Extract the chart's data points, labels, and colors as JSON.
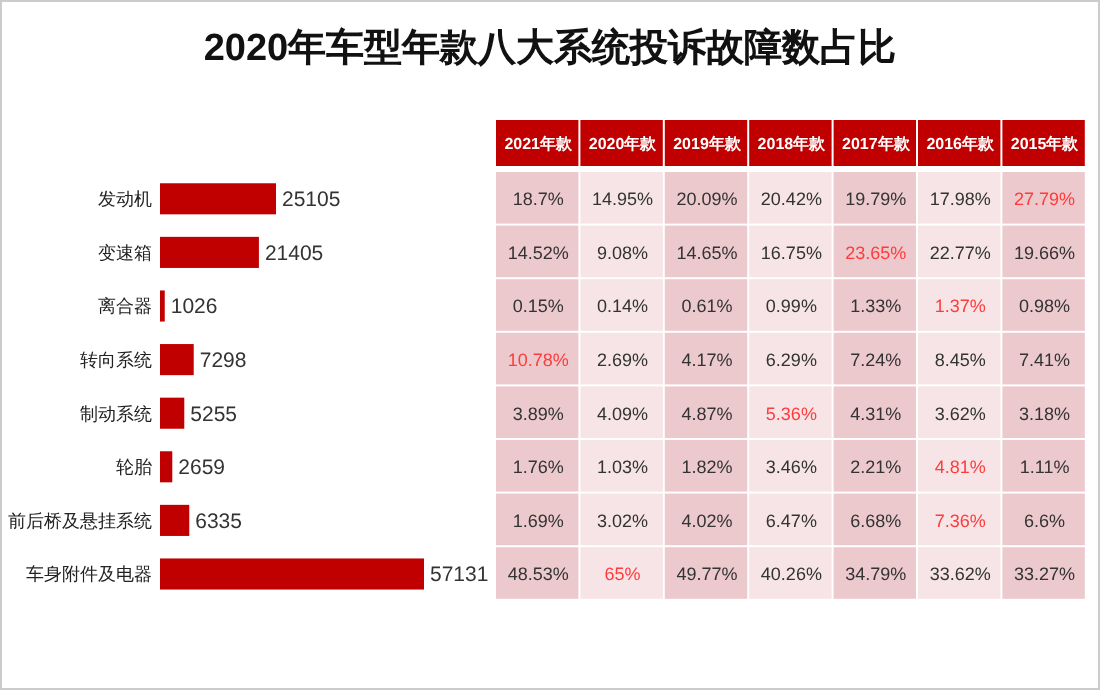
{
  "chart_data": [
    {
      "type": "bar",
      "title": "2020年车型年款八大系统投诉故障数占比",
      "orientation": "horizontal",
      "categories": [
        "发动机",
        "变速箱",
        "离合器",
        "转向系统",
        "制动系统",
        "轮胎",
        "前后桥及悬挂系统",
        "车身附件及电器"
      ],
      "values": [
        25105,
        21405,
        1026,
        7298,
        5255,
        2659,
        6335,
        57131
      ],
      "color": "#c00000",
      "data_labels": true,
      "tick_labels": "y"
    },
    {
      "type": "heatmap",
      "categories": [
        "2021年款",
        "2020年款",
        "2019年款",
        "2018年款",
        "2017年款",
        "2016年款",
        "2015年款"
      ],
      "y_categories": [
        null,
        null,
        null,
        null,
        null,
        null,
        null,
        null
      ],
      "tick_labels": "x",
      "colors": [
        "#ecc9cc",
        "#f6e4e6",
        "#ecc9cc",
        "#f6e4e6",
        "#ecc9cc",
        "#f6e4e6",
        "#ecc9cc"
      ],
      "cells": [
        [
          18.7,
          14.95,
          20.09,
          20.42,
          19.79,
          17.98,
          27.79
        ],
        [
          14.52,
          9.08,
          14.65,
          16.75,
          23.65,
          22.77,
          19.66
        ],
        [
          0.15,
          0.14,
          0.61,
          0.99,
          1.33,
          1.37,
          0.98
        ],
        [
          10.78,
          2.69,
          4.17,
          6.29,
          7.24,
          8.45,
          7.41
        ],
        [
          3.89,
          4.09,
          4.87,
          5.36,
          4.31,
          3.62,
          3.18
        ],
        [
          1.76,
          1.03,
          1.82,
          3.46,
          2.21,
          4.81,
          1.11
        ],
        [
          1.69,
          3.02,
          4.02,
          6.47,
          6.68,
          7.36,
          6.6
        ],
        [
          48.53,
          65,
          49.77,
          40.26,
          34.79,
          33.62,
          33.27
        ]
      ],
      "cell_labels": [
        [
          "18.7%",
          "14.95%",
          "20.09%",
          "20.42%",
          "19.79%",
          "17.98%",
          "27.79%"
        ],
        [
          "14.52%",
          "9.08%",
          "14.65%",
          "16.75%",
          "23.65%",
          "22.77%",
          "19.66%"
        ],
        [
          "0.15%",
          "0.14%",
          "0.61%",
          "0.99%",
          "1.33%",
          "1.37%",
          "0.98%"
        ],
        [
          "10.78%",
          "2.69%",
          "4.17%",
          "6.29%",
          "7.24%",
          "8.45%",
          "7.41%"
        ],
        [
          "3.89%",
          "4.09%",
          "4.87%",
          "5.36%",
          "4.31%",
          "3.62%",
          "3.18%"
        ],
        [
          "1.76%",
          "1.03%",
          "1.82%",
          "3.46%",
          "2.21%",
          "4.81%",
          "1.11%"
        ],
        [
          "1.69%",
          "3.02%",
          "4.02%",
          "6.47%",
          "6.68%",
          "7.36%",
          "6.6%"
        ],
        [
          "48.53%",
          "65%",
          "49.77%",
          "40.26%",
          "34.79%",
          "33.62%",
          "33.27%"
        ]
      ]
    }
  ]
}
